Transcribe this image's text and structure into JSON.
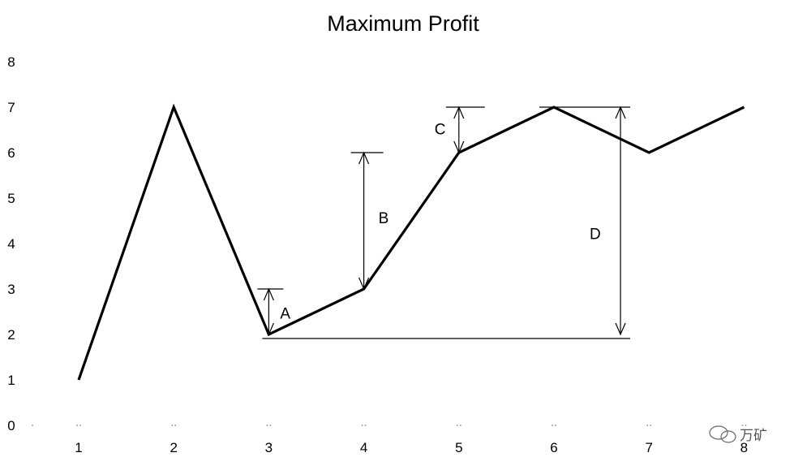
{
  "chart_data": {
    "type": "line",
    "title": "Maximum Profit",
    "x": [
      1,
      2,
      3,
      4,
      5,
      6,
      7,
      8
    ],
    "series": [
      {
        "values": [
          1,
          7,
          2,
          3,
          6,
          7,
          6,
          7
        ]
      }
    ],
    "y_ticks": [
      "0",
      "1",
      "2",
      "3",
      "4",
      "5",
      "6",
      "7",
      "8"
    ],
    "x_ticks": [
      "1",
      "2",
      "3",
      "4",
      "5",
      "6",
      "7",
      "8"
    ],
    "ylim": [
      0,
      8
    ],
    "xlim": [
      1,
      8
    ],
    "grid": false,
    "legend": "none",
    "annotations": [
      {
        "label": "A",
        "x": 3,
        "from": 2,
        "to": 3
      },
      {
        "label": "B",
        "x": 4,
        "from": 3,
        "to": 6
      },
      {
        "label": "C",
        "x": 5,
        "from": 6,
        "to": 7
      },
      {
        "label": "D",
        "x": 6.7,
        "from": 2,
        "to": 7
      }
    ],
    "watermark_text": "万矿",
    "colors": {
      "line": "#000000",
      "background": "#ffffff"
    }
  }
}
